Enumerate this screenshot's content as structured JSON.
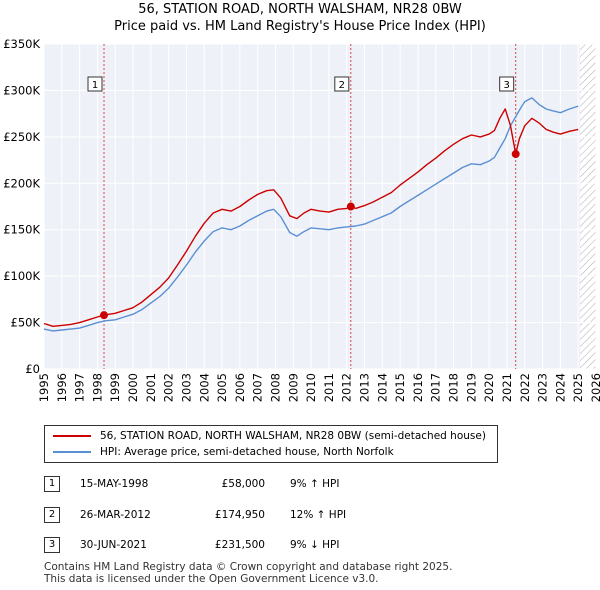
{
  "header": {
    "title": "56, STATION ROAD, NORTH WALSHAM, NR28 0BW",
    "subtitle": "Price paid vs. HM Land Registry's House Price Index (HPI)"
  },
  "chart_data": {
    "type": "line",
    "title": "56, STATION ROAD, NORTH WALSHAM, NR28 0BW",
    "subtitle": "Price paid vs. HM Land Registry's House Price Index (HPI)",
    "xlabel": "",
    "ylabel": "",
    "xlim": [
      1995,
      2026
    ],
    "ylim": [
      0,
      350000
    ],
    "grid": true,
    "x_ticks": [
      "1995",
      "1996",
      "1997",
      "1998",
      "1999",
      "2000",
      "2001",
      "2002",
      "2003",
      "2004",
      "2005",
      "2006",
      "2007",
      "2008",
      "2009",
      "2010",
      "2011",
      "2012",
      "2013",
      "2014",
      "2015",
      "2016",
      "2017",
      "2018",
      "2019",
      "2020",
      "2021",
      "2022",
      "2023",
      "2024",
      "2025",
      "2026"
    ],
    "y_ticks": [
      {
        "value": 0,
        "label": "£0"
      },
      {
        "value": 50000,
        "label": "£50K"
      },
      {
        "value": 100000,
        "label": "£100K"
      },
      {
        "value": 150000,
        "label": "£150K"
      },
      {
        "value": 200000,
        "label": "£200K"
      },
      {
        "value": 250000,
        "label": "£250K"
      },
      {
        "value": 300000,
        "label": "£300K"
      },
      {
        "value": 350000,
        "label": "£350K"
      }
    ],
    "hatch_after": 2025.1,
    "series": [
      {
        "name": "56, STATION ROAD, NORTH WALSHAM, NR28 0BW (semi-detached house)",
        "color": "#cc0000",
        "x": [
          1995.0,
          1995.5,
          1996.0,
          1996.5,
          1997.0,
          1997.5,
          1998.0,
          1998.37,
          1998.5,
          1999.0,
          1999.5,
          2000.0,
          2000.5,
          2001.0,
          2001.5,
          2002.0,
          2002.5,
          2003.0,
          2003.5,
          2004.0,
          2004.5,
          2005.0,
          2005.5,
          2006.0,
          2006.5,
          2007.0,
          2007.5,
          2007.9,
          2008.3,
          2008.8,
          2009.2,
          2009.6,
          2010.0,
          2010.5,
          2011.0,
          2011.5,
          2012.0,
          2012.23,
          2012.5,
          2013.0,
          2013.5,
          2014.0,
          2014.5,
          2015.0,
          2015.5,
          2016.0,
          2016.5,
          2017.0,
          2017.5,
          2018.0,
          2018.5,
          2019.0,
          2019.5,
          2020.0,
          2020.3,
          2020.6,
          2020.9,
          2021.2,
          2021.49,
          2021.7,
          2022.0,
          2022.4,
          2022.8,
          2023.2,
          2023.6,
          2024.0,
          2024.5,
          2025.0
        ],
        "values": [
          49000,
          46000,
          47000,
          48000,
          50000,
          53000,
          56000,
          58000,
          58500,
          60000,
          63000,
          66000,
          72000,
          80000,
          88000,
          98000,
          112000,
          127000,
          143000,
          157000,
          168000,
          172000,
          170000,
          175000,
          182000,
          188000,
          192000,
          193000,
          184000,
          165000,
          162000,
          168000,
          172000,
          170000,
          169000,
          172000,
          173000,
          174950,
          173000,
          176000,
          180000,
          185000,
          190000,
          198000,
          205000,
          212000,
          220000,
          227000,
          235000,
          242000,
          248000,
          252000,
          250000,
          253000,
          257000,
          270000,
          280000,
          262000,
          231500,
          248000,
          262000,
          270000,
          265000,
          258000,
          255000,
          253000,
          256000,
          258000
        ]
      },
      {
        "name": "HPI: Average price, semi-detached house, North Norfolk",
        "color": "#5b8fd4",
        "x": [
          1995.0,
          1995.5,
          1996.0,
          1996.5,
          1997.0,
          1997.5,
          1998.0,
          1998.5,
          1999.0,
          1999.5,
          2000.0,
          2000.5,
          2001.0,
          2001.5,
          2002.0,
          2002.5,
          2003.0,
          2003.5,
          2004.0,
          2004.5,
          2005.0,
          2005.5,
          2006.0,
          2006.5,
          2007.0,
          2007.5,
          2007.9,
          2008.3,
          2008.8,
          2009.2,
          2009.6,
          2010.0,
          2010.5,
          2011.0,
          2011.5,
          2012.0,
          2012.5,
          2013.0,
          2013.5,
          2014.0,
          2014.5,
          2015.0,
          2015.5,
          2016.0,
          2016.5,
          2017.0,
          2017.5,
          2018.0,
          2018.5,
          2019.0,
          2019.5,
          2020.0,
          2020.3,
          2020.6,
          2020.9,
          2021.2,
          2021.5,
          2021.8,
          2022.0,
          2022.4,
          2022.8,
          2023.2,
          2023.6,
          2024.0,
          2024.5,
          2025.0
        ],
        "values": [
          43000,
          41000,
          42000,
          43000,
          44000,
          47000,
          50000,
          52000,
          53000,
          56000,
          59000,
          64000,
          71000,
          78000,
          87000,
          99000,
          112000,
          126000,
          138000,
          148000,
          152000,
          150000,
          154000,
          160000,
          165000,
          170000,
          172000,
          164000,
          147000,
          143000,
          148000,
          152000,
          151000,
          150000,
          152000,
          153000,
          154000,
          156000,
          160000,
          164000,
          168000,
          175000,
          181000,
          187000,
          193000,
          199000,
          205000,
          211000,
          217000,
          221000,
          220000,
          224000,
          228000,
          238000,
          248000,
          262000,
          272000,
          282000,
          288000,
          292000,
          285000,
          280000,
          278000,
          276000,
          280000,
          283000
        ]
      }
    ],
    "sales": [
      {
        "label": "1",
        "x": 1998.37,
        "price": 58000,
        "date": "15-MAY-1998",
        "price_label": "£58,000",
        "hpi_note": "9% ↑ HPI"
      },
      {
        "label": "2",
        "x": 2012.23,
        "price": 174950,
        "date": "26-MAR-2012",
        "price_label": "£174,950",
        "hpi_note": "12% ↑ HPI"
      },
      {
        "label": "3",
        "x": 2021.49,
        "price": 231500,
        "date": "30-JUN-2021",
        "price_label": "£231,500",
        "hpi_note": "9% ↓ HPI"
      }
    ]
  },
  "legend": {
    "property_label": "56, STATION ROAD, NORTH WALSHAM, NR28 0BW (semi-detached house)",
    "hpi_label": "HPI: Average price, semi-detached house, North Norfolk"
  },
  "sales_table": [
    {
      "label": "1",
      "date": "15-MAY-1998",
      "price": "£58,000",
      "hpi": "9% ↑ HPI"
    },
    {
      "label": "2",
      "date": "26-MAR-2012",
      "price": "£174,950",
      "hpi": "12% ↑ HPI"
    },
    {
      "label": "3",
      "date": "30-JUN-2021",
      "price": "£231,500",
      "hpi": "9% ↓ HPI"
    }
  ],
  "footer": {
    "line1": "Contains HM Land Registry data © Crown copyright and database right 2025.",
    "line2": "This data is licensed under the Open Government Licence v3.0."
  },
  "colors": {
    "property_line": "#cc0000",
    "hpi_line": "#5b8fd4",
    "plot_background": "#eef2f8",
    "sale_marker_line": "#dd4444"
  }
}
